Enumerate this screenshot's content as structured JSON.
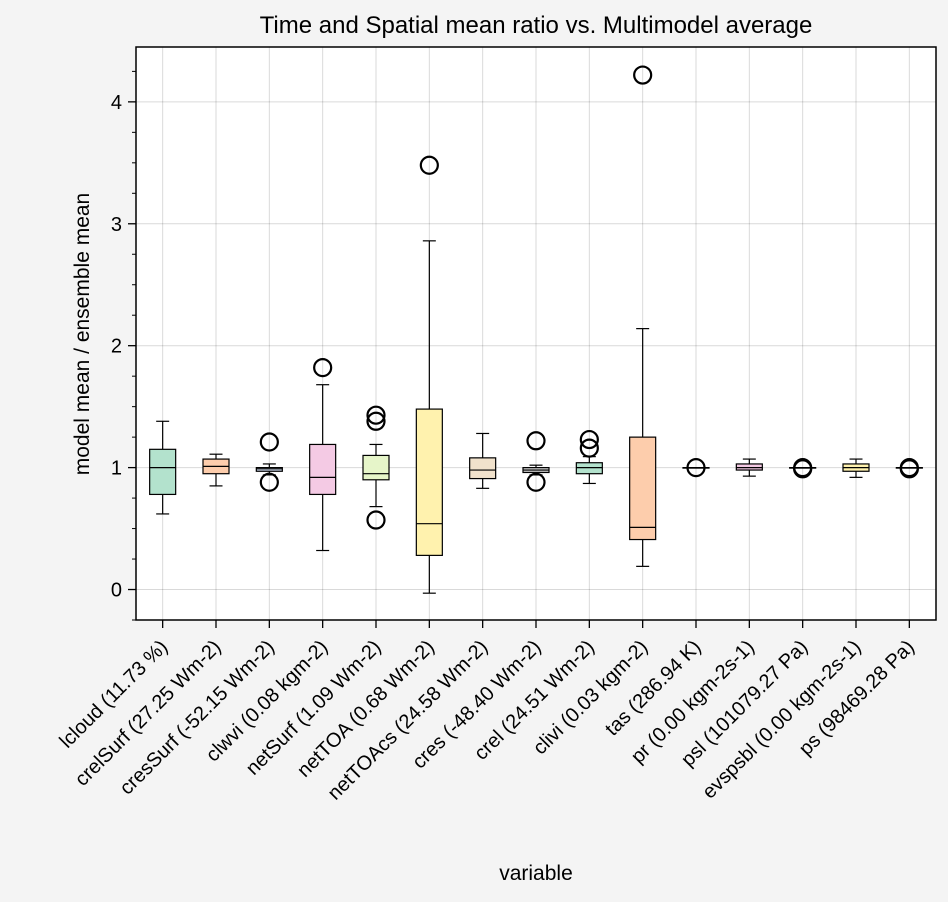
{
  "chart_data": {
    "type": "box",
    "title": "Time and Spatial mean ratio vs. Multimodel average",
    "xlabel": "variable",
    "ylabel": "model mean / ensemble mean",
    "ylim": [
      -0.25,
      4.45
    ],
    "yticks": [
      0,
      1,
      2,
      3,
      4
    ],
    "grid": true,
    "categories": [
      "lcloud (11.73 %)",
      "crelSurf (27.25 Wm-2)",
      "cresSurf (-52.15 Wm-2)",
      "clwvi (0.08 kgm-2)",
      "netSurf (1.09 Wm-2)",
      "netTOA (0.68 Wm-2)",
      "netTOAcs (24.58 Wm-2)",
      "cres (-48.40 Wm-2)",
      "crel (24.51 Wm-2)",
      "clivi (0.03 kgm-2)",
      "tas (286.94 K)",
      "pr (0.00 kgm-2s-1)",
      "psl (101079.27 Pa)",
      "evspsbl (0.00 kgm-2s-1)",
      "ps (98469.28 Pa)"
    ],
    "boxes": [
      {
        "whislo": 0.62,
        "q1": 0.78,
        "med": 1.0,
        "q3": 1.15,
        "whishi": 1.38,
        "fliers": [],
        "color": "#b3e2cd"
      },
      {
        "whislo": 0.85,
        "q1": 0.95,
        "med": 1.01,
        "q3": 1.07,
        "whishi": 1.11,
        "fliers": [],
        "color": "#fdcdac"
      },
      {
        "whislo": 0.94,
        "q1": 0.97,
        "med": 0.99,
        "q3": 1.0,
        "whishi": 1.03,
        "fliers": [
          1.21,
          0.88
        ],
        "color": "#cbd5e8"
      },
      {
        "whislo": 0.32,
        "q1": 0.78,
        "med": 0.92,
        "q3": 1.19,
        "whishi": 1.68,
        "fliers": [
          1.82
        ],
        "color": "#f4cae4"
      },
      {
        "whislo": 0.68,
        "q1": 0.9,
        "med": 0.95,
        "q3": 1.1,
        "whishi": 1.19,
        "fliers": [
          1.43,
          1.38,
          0.57
        ],
        "color": "#e6f5c9"
      },
      {
        "whislo": -0.03,
        "q1": 0.28,
        "med": 0.54,
        "q3": 1.48,
        "whishi": 2.86,
        "fliers": [
          3.48
        ],
        "color": "#fff2ae"
      },
      {
        "whislo": 0.83,
        "q1": 0.91,
        "med": 0.98,
        "q3": 1.08,
        "whishi": 1.28,
        "fliers": [],
        "color": "#f1e2cc"
      },
      {
        "whislo": 0.94,
        "q1": 0.96,
        "med": 0.98,
        "q3": 1.0,
        "whishi": 1.02,
        "fliers": [
          1.22,
          0.88
        ],
        "color": "#cccccc"
      },
      {
        "whislo": 0.87,
        "q1": 0.95,
        "med": 1.0,
        "q3": 1.04,
        "whishi": 1.09,
        "fliers": [
          1.23,
          1.16
        ],
        "color": "#b3e2cd"
      },
      {
        "whislo": 0.19,
        "q1": 0.41,
        "med": 0.51,
        "q3": 1.25,
        "whishi": 2.14,
        "fliers": [
          4.22
        ],
        "color": "#fdcdac"
      },
      {
        "whislo": 1.0,
        "q1": 1.0,
        "med": 1.0,
        "q3": 1.0,
        "whishi": 1.0,
        "fliers": [
          1.0
        ],
        "color": "#cbd5e8"
      },
      {
        "whislo": 0.93,
        "q1": 0.98,
        "med": 1.0,
        "q3": 1.03,
        "whishi": 1.07,
        "fliers": [],
        "color": "#f4cae4"
      },
      {
        "whislo": 1.0,
        "q1": 1.0,
        "med": 1.0,
        "q3": 1.0,
        "whishi": 1.0,
        "fliers": [
          0.99,
          1.0
        ],
        "color": "#e6f5c9"
      },
      {
        "whislo": 0.92,
        "q1": 0.97,
        "med": 1.0,
        "q3": 1.03,
        "whishi": 1.07,
        "fliers": [],
        "color": "#fff2ae"
      },
      {
        "whislo": 1.0,
        "q1": 1.0,
        "med": 1.0,
        "q3": 1.0,
        "whishi": 1.0,
        "fliers": [
          0.99,
          1.0
        ],
        "color": "#f1e2cc"
      }
    ]
  }
}
